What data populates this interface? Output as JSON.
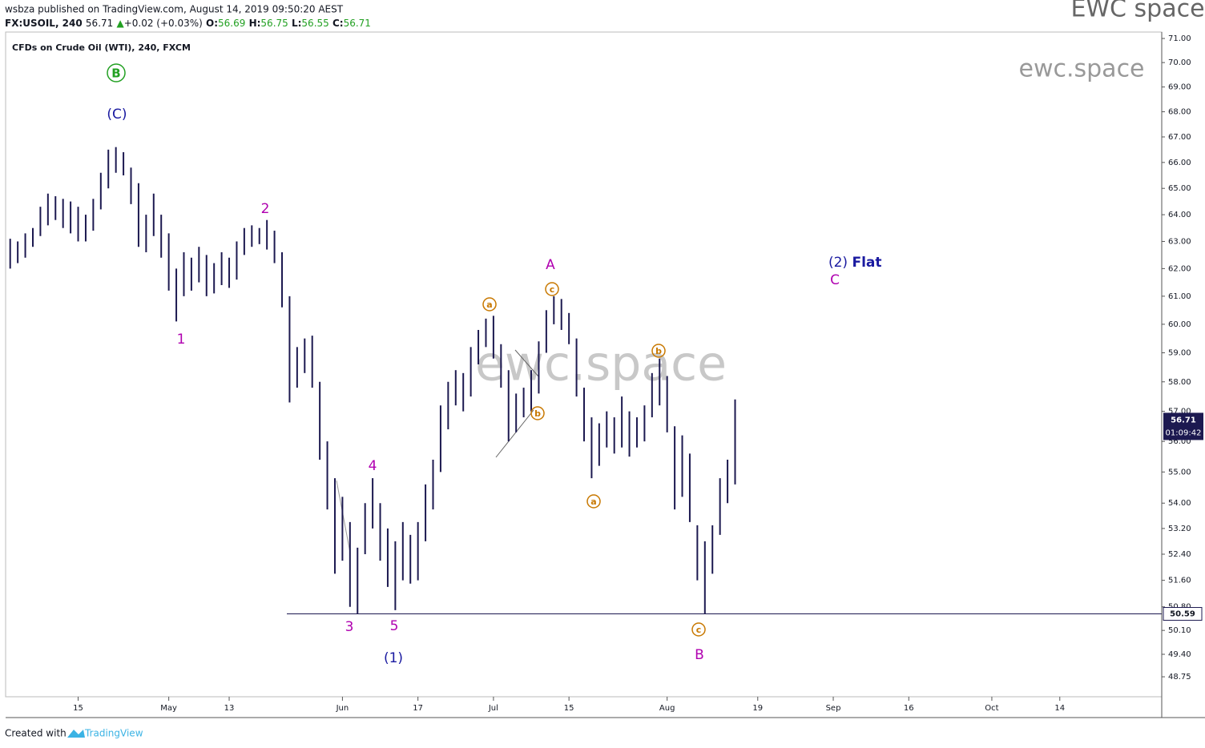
{
  "header": {
    "publisher": "wsbza published on TradingView.com, August 14, 2019 09:50:20 AEST",
    "symbol": "FX:USOIL, 240",
    "price": "56.71",
    "arrow": "▲",
    "change": "+0.02 (+0.03%)",
    "o_label": "O:",
    "o": "56.69",
    "h_label": "H:",
    "h": "56.75",
    "l_label": "L:",
    "l": "56.55",
    "c_label": "C:",
    "c": "56.71",
    "brand": "EWC space"
  },
  "footer": {
    "created": "Created with",
    "logo": "TradingView"
  },
  "chart_data": {
    "type": "ohlc",
    "title": "CFDs on Crude Oil (WTI), 240, FXCM",
    "watermark": "ewc.space",
    "log": true,
    "grid": false,
    "bar_color": "#1c1950",
    "categories": [
      null,
      null,
      null,
      null,
      null,
      null,
      null,
      null,
      null,
      "15",
      null,
      null,
      null,
      null,
      null,
      null,
      null,
      null,
      null,
      null,
      null,
      "May",
      null,
      null,
      null,
      null,
      null,
      null,
      null,
      "13",
      null,
      null,
      null,
      null,
      null,
      null,
      null,
      null,
      null,
      null,
      null,
      null,
      null,
      null,
      "Jun",
      null,
      null,
      null,
      null,
      null,
      null,
      null,
      null,
      null,
      "17",
      null,
      null,
      null,
      null,
      null,
      null,
      null,
      null,
      null,
      "Jul",
      null,
      null,
      null,
      null,
      null,
      null,
      null,
      null,
      null,
      "15",
      null,
      null,
      null,
      null,
      null,
      null,
      null,
      null,
      null,
      null,
      null,
      null,
      "Aug",
      null,
      null,
      null,
      null,
      null,
      null,
      null,
      null,
      null,
      null,
      null,
      "19",
      null,
      null,
      null,
      null,
      null,
      null,
      null,
      null,
      null,
      "Sep",
      null,
      null,
      null,
      null,
      null,
      null,
      null,
      null,
      null,
      "16",
      null,
      null,
      null,
      null,
      null,
      null,
      null,
      null,
      null,
      null,
      "Oct",
      null,
      null,
      null,
      null,
      null,
      null,
      null,
      null,
      "14",
      null,
      null,
      null,
      null,
      null,
      null,
      null,
      null,
      null,
      null,
      null,
      null,
      null
    ],
    "high": [
      63.1,
      63.0,
      63.3,
      63.5,
      64.3,
      64.8,
      64.7,
      64.6,
      64.5,
      64.3,
      64.0,
      64.6,
      65.6,
      66.5,
      66.6,
      66.4,
      65.8,
      65.2,
      64.0,
      64.8,
      64.0,
      63.3,
      62.0,
      62.6,
      62.4,
      62.8,
      62.5,
      62.2,
      62.6,
      62.4,
      63.0,
      63.5,
      63.6,
      63.5,
      63.8,
      63.4,
      62.6,
      61.0,
      59.2,
      59.5,
      59.6,
      58.0,
      56.0,
      54.8,
      54.2,
      53.4,
      52.6,
      54.0,
      54.8,
      54.0,
      53.2,
      52.8,
      53.4,
      53.0,
      53.4,
      54.6,
      55.4,
      57.2,
      58.0,
      58.4,
      58.3,
      59.2,
      59.8,
      60.2,
      60.3,
      59.3,
      58.4,
      57.6,
      57.8,
      58.4,
      59.4,
      60.5,
      61.0,
      60.9,
      60.4,
      59.5,
      57.8,
      56.8,
      56.6,
      57.0,
      56.8,
      57.5,
      57.0,
      56.8,
      57.2,
      58.3,
      58.8,
      58.2,
      56.5,
      56.2,
      55.6,
      53.3,
      52.8,
      53.3,
      54.8,
      55.4,
      57.4,
      null,
      null,
      null,
      null,
      null,
      null,
      null,
      null,
      null,
      null,
      null,
      null,
      null,
      null,
      null,
      null,
      null,
      null,
      null,
      null,
      null,
      null,
      null,
      null,
      null,
      null,
      null,
      null,
      null,
      null,
      null,
      null,
      null,
      null,
      null,
      null,
      null,
      null,
      null,
      null,
      null,
      null,
      null,
      null,
      null,
      null,
      null,
      null,
      null,
      null,
      null,
      null,
      null,
      null,
      null,
      null
    ],
    "low": [
      62.0,
      62.2,
      62.4,
      62.8,
      63.2,
      63.6,
      63.8,
      63.5,
      63.3,
      63.0,
      63.0,
      63.4,
      64.2,
      65.0,
      65.6,
      65.5,
      64.4,
      62.8,
      62.6,
      63.2,
      62.4,
      61.2,
      60.1,
      61.0,
      61.2,
      61.5,
      61.0,
      61.1,
      61.4,
      61.3,
      61.6,
      62.5,
      62.8,
      62.9,
      62.7,
      62.2,
      60.6,
      57.3,
      57.8,
      58.3,
      57.8,
      55.4,
      53.8,
      51.8,
      52.2,
      50.8,
      50.6,
      52.4,
      53.2,
      52.2,
      51.4,
      50.7,
      51.6,
      51.5,
      51.6,
      52.8,
      53.8,
      55.0,
      56.4,
      57.2,
      57.0,
      57.5,
      58.6,
      59.2,
      58.8,
      57.8,
      56.0,
      56.3,
      56.8,
      57.0,
      57.6,
      59.0,
      60.0,
      59.8,
      59.3,
      57.5,
      56.0,
      54.8,
      55.2,
      55.8,
      55.6,
      55.8,
      55.5,
      55.8,
      56.0,
      56.8,
      57.2,
      56.3,
      53.8,
      54.2,
      53.4,
      51.6,
      50.6,
      51.8,
      53.0,
      54.0,
      54.6,
      null,
      null,
      null,
      null,
      null,
      null,
      null,
      null,
      null,
      null,
      null,
      null,
      null,
      null,
      null,
      null,
      null,
      null,
      null,
      null,
      null,
      null,
      null,
      null,
      null,
      null,
      null,
      null,
      null,
      null,
      null,
      null,
      null,
      null,
      null,
      null,
      null,
      null,
      null,
      null,
      null,
      null,
      null,
      null,
      null,
      null,
      null,
      null,
      null,
      null,
      null,
      null,
      null,
      null,
      null,
      null
    ],
    "ylim": [
      48.18,
      71.27
    ],
    "yticks": [
      {
        "value": 71,
        "label": "71.00"
      },
      {
        "value": 70,
        "label": "70.00"
      },
      {
        "value": 69,
        "label": "69.00"
      },
      {
        "value": 68,
        "label": "68.00"
      },
      {
        "value": 67,
        "label": "67.00"
      },
      {
        "value": 66,
        "label": "66.00"
      },
      {
        "value": 65,
        "label": "65.00"
      },
      {
        "value": 64,
        "label": "64.00"
      },
      {
        "value": 63,
        "label": "63.00"
      },
      {
        "value": 62,
        "label": "62.00"
      },
      {
        "value": 61,
        "label": "61.00"
      },
      {
        "value": 60,
        "label": "60.00"
      },
      {
        "value": 59,
        "label": "59.00"
      },
      {
        "value": 58,
        "label": "58.00"
      },
      {
        "value": 57,
        "label": "57.00"
      },
      {
        "value": 56,
        "label": "56.00"
      },
      {
        "value": 55,
        "label": "55.00"
      },
      {
        "value": 54,
        "label": "54.00"
      },
      {
        "value": 53.2,
        "label": "53.20"
      },
      {
        "value": 52.4,
        "label": "52.40"
      },
      {
        "value": 51.6,
        "label": "51.60"
      },
      {
        "value": 50.8,
        "label": "50.80"
      },
      {
        "value": 50.1,
        "label": "50.10"
      },
      {
        "value": 49.4,
        "label": "49.40"
      },
      {
        "value": 48.75,
        "label": "48.75"
      }
    ],
    "hline": 50.59,
    "hline_color": "#1c1950",
    "last": 56.71,
    "countdown": "01:09:42",
    "annotations": [
      {
        "text": "B",
        "color": "#22a022",
        "circle": true
      },
      {
        "text": "(C)",
        "color": "#1a1aa0",
        "circle": false
      },
      {
        "text": "1",
        "color": "#b000b0",
        "circle": false
      },
      {
        "text": "2",
        "color": "#b000b0",
        "circle": false
      },
      {
        "text": "3",
        "color": "#b000b0",
        "circle": false
      },
      {
        "text": "4",
        "color": "#b000b0",
        "circle": false
      },
      {
        "text": "5",
        "color": "#b000b0",
        "circle": false
      },
      {
        "text": "(1)",
        "color": "#1a1aa0",
        "circle": false
      },
      {
        "text": "a",
        "color": "#c87800",
        "circle": true
      },
      {
        "text": "b",
        "color": "#c87800",
        "circle": true
      },
      {
        "text": "c",
        "color": "#c87800",
        "circle": true
      },
      {
        "text": "A",
        "color": "#b000b0",
        "circle": false
      },
      {
        "text": "a",
        "color": "#c87800",
        "circle": true
      },
      {
        "text": "b",
        "color": "#c87800",
        "circle": true
      },
      {
        "text": "c",
        "color": "#c87800",
        "circle": true
      },
      {
        "text": "B",
        "color": "#b000b0",
        "circle": false
      },
      {
        "text": "(2)",
        "color": "#1a1aa0",
        "circle": false
      },
      {
        "text": "Flat",
        "color": "#1a1aa0",
        "circle": false
      },
      {
        "text": "C",
        "color": "#b000b0",
        "circle": false
      }
    ]
  }
}
